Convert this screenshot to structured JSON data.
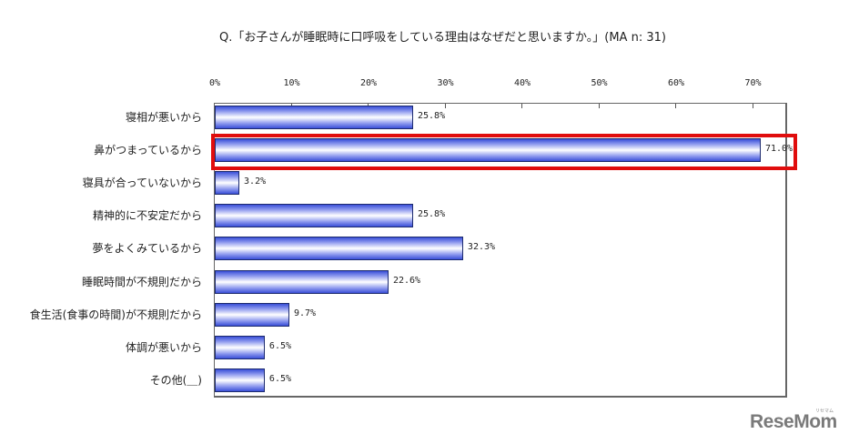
{
  "chart_data": {
    "type": "bar",
    "orientation": "horizontal",
    "title": "Q.「お子さんが睡眠時に口呼吸をしている理由はなぜだと思いますか。」(MA n: 31)",
    "xlabel": "",
    "ylabel": "",
    "xlim": [
      0,
      75
    ],
    "x_ticks": [
      "0%",
      "10%",
      "20%",
      "30%",
      "40%",
      "50%",
      "60%",
      "70%"
    ],
    "categories": [
      "寝相が悪いから",
      "鼻がつまっているから",
      "寝具が合っていないから",
      "精神的に不安定だから",
      "夢をよくみているから",
      "睡眠時間が不規則だから",
      "食生活(食事の時間)が不規則だから",
      "体調が悪いから",
      "その他(＿)"
    ],
    "values": [
      25.8,
      71.0,
      3.2,
      25.8,
      32.3,
      22.6,
      9.7,
      6.5,
      6.5
    ],
    "value_labels": [
      "25.8%",
      "71.0%",
      "3.2%",
      "25.8%",
      "32.3%",
      "22.6%",
      "9.7%",
      "6.5%",
      "6.5%"
    ],
    "highlighted_category": "鼻がつまっているから",
    "grid": false,
    "legend": null
  },
  "colors": {
    "bar_edge": "#1c2a6e",
    "bar_dark": "#3a4fd8",
    "bar_light": "#ffffff",
    "highlight_box": "#e00d0d",
    "logo": "#7a7a7a"
  },
  "logo": {
    "text": "ReseMom",
    "subtext": "リセマム"
  }
}
